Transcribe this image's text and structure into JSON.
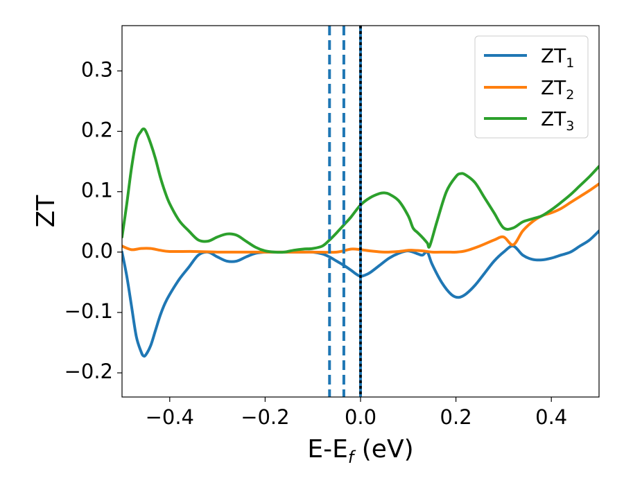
{
  "chart_data": {
    "type": "line",
    "xlabel": {
      "main": "E-E",
      "sub": "f",
      "tail": " (eV)"
    },
    "ylabel": "ZT",
    "xlim": [
      -0.5,
      0.5
    ],
    "ylim": [
      -0.24,
      0.375
    ],
    "xticks": [
      -0.4,
      -0.2,
      0.0,
      0.2,
      0.4
    ],
    "xtick_labels": [
      "−0.4",
      "−0.2",
      "0.0",
      "0.2",
      "0.4"
    ],
    "yticks": [
      -0.2,
      -0.1,
      0.0,
      0.1,
      0.2,
      0.3
    ],
    "ytick_labels": [
      "−0.2",
      "−0.1",
      "0.0",
      "0.1",
      "0.2",
      "0.3"
    ],
    "grid": false,
    "legend_position": "top-right",
    "vlines": [
      {
        "x": -0.065,
        "style": "dashed",
        "color": "#1f77b4"
      },
      {
        "x": -0.035,
        "style": "dashed",
        "color": "#1f77b4"
      },
      {
        "x": 0.0,
        "style": "solid",
        "color": "#1f77b4"
      },
      {
        "x": 0.0,
        "style": "dotted",
        "color": "#000000"
      }
    ],
    "series": [
      {
        "name": "ZT",
        "sub": "1",
        "color": "#1f77b4",
        "x": [
          -0.5,
          -0.49,
          -0.48,
          -0.47,
          -0.46,
          -0.455,
          -0.45,
          -0.44,
          -0.43,
          -0.42,
          -0.41,
          -0.4,
          -0.38,
          -0.36,
          -0.34,
          -0.32,
          -0.3,
          -0.28,
          -0.26,
          -0.24,
          -0.22,
          -0.2,
          -0.18,
          -0.16,
          -0.14,
          -0.12,
          -0.1,
          -0.08,
          -0.065,
          -0.05,
          -0.035,
          -0.02,
          -0.01,
          0.0,
          0.01,
          0.02,
          0.04,
          0.06,
          0.08,
          0.1,
          0.12,
          0.13,
          0.14,
          0.15,
          0.17,
          0.19,
          0.205,
          0.22,
          0.24,
          0.26,
          0.28,
          0.3,
          0.32,
          0.34,
          0.36,
          0.38,
          0.4,
          0.42,
          0.44,
          0.46,
          0.48,
          0.5
        ],
        "y": [
          0.0,
          -0.04,
          -0.09,
          -0.14,
          -0.165,
          -0.172,
          -0.17,
          -0.155,
          -0.13,
          -0.105,
          -0.085,
          -0.07,
          -0.045,
          -0.025,
          -0.005,
          0.0,
          -0.008,
          -0.015,
          -0.015,
          -0.008,
          -0.002,
          0.0,
          0.0,
          0.0,
          0.0,
          0.0,
          0.0,
          -0.003,
          -0.008,
          -0.015,
          -0.022,
          -0.03,
          -0.036,
          -0.04,
          -0.038,
          -0.034,
          -0.022,
          -0.01,
          -0.002,
          0.002,
          -0.003,
          -0.005,
          0.0,
          -0.02,
          -0.05,
          -0.07,
          -0.075,
          -0.07,
          -0.055,
          -0.035,
          -0.015,
          0.0,
          0.01,
          -0.005,
          -0.012,
          -0.013,
          -0.01,
          -0.005,
          0.0,
          0.01,
          0.02,
          0.035
        ]
      },
      {
        "name": "ZT",
        "sub": "2",
        "color": "#ff7f0e",
        "x": [
          -0.5,
          -0.48,
          -0.46,
          -0.44,
          -0.42,
          -0.4,
          -0.35,
          -0.3,
          -0.25,
          -0.2,
          -0.15,
          -0.1,
          -0.05,
          -0.02,
          0.0,
          0.02,
          0.05,
          0.08,
          0.1,
          0.11,
          0.13,
          0.15,
          0.18,
          0.2,
          0.22,
          0.25,
          0.28,
          0.3,
          0.32,
          0.34,
          0.36,
          0.38,
          0.4,
          0.42,
          0.44,
          0.46,
          0.48,
          0.5
        ],
        "y": [
          0.01,
          0.004,
          0.006,
          0.006,
          0.003,
          0.001,
          0.001,
          0.0,
          0.0,
          0.0,
          0.0,
          0.0,
          0.0,
          0.005,
          0.004,
          0.002,
          0.0,
          0.001,
          0.003,
          0.003,
          0.002,
          0.0,
          0.0,
          0.0,
          0.002,
          0.01,
          0.02,
          0.025,
          0.012,
          0.035,
          0.05,
          0.06,
          0.065,
          0.072,
          0.082,
          0.092,
          0.102,
          0.113
        ]
      },
      {
        "name": "ZT",
        "sub": "3",
        "color": "#2ca02c",
        "x": [
          -0.5,
          -0.49,
          -0.48,
          -0.47,
          -0.46,
          -0.455,
          -0.45,
          -0.44,
          -0.43,
          -0.42,
          -0.41,
          -0.4,
          -0.38,
          -0.36,
          -0.34,
          -0.32,
          -0.3,
          -0.28,
          -0.26,
          -0.24,
          -0.22,
          -0.2,
          -0.18,
          -0.16,
          -0.14,
          -0.12,
          -0.1,
          -0.08,
          -0.065,
          -0.05,
          -0.035,
          -0.02,
          0.0,
          0.02,
          0.04,
          0.05,
          0.06,
          0.08,
          0.1,
          0.11,
          0.12,
          0.13,
          0.14,
          0.145,
          0.16,
          0.18,
          0.2,
          0.21,
          0.22,
          0.24,
          0.26,
          0.28,
          0.3,
          0.32,
          0.34,
          0.36,
          0.38,
          0.4,
          0.42,
          0.44,
          0.46,
          0.48,
          0.5
        ],
        "y": [
          0.025,
          0.08,
          0.14,
          0.185,
          0.2,
          0.204,
          0.2,
          0.18,
          0.155,
          0.125,
          0.1,
          0.08,
          0.052,
          0.035,
          0.02,
          0.018,
          0.025,
          0.03,
          0.028,
          0.018,
          0.008,
          0.002,
          0.0,
          0.0,
          0.003,
          0.005,
          0.006,
          0.01,
          0.02,
          0.032,
          0.045,
          0.058,
          0.078,
          0.09,
          0.097,
          0.098,
          0.096,
          0.085,
          0.06,
          0.04,
          0.032,
          0.024,
          0.015,
          0.01,
          0.05,
          0.1,
          0.125,
          0.13,
          0.128,
          0.115,
          0.09,
          0.065,
          0.04,
          0.04,
          0.05,
          0.055,
          0.06,
          0.07,
          0.082,
          0.095,
          0.11,
          0.125,
          0.142
        ]
      }
    ]
  }
}
